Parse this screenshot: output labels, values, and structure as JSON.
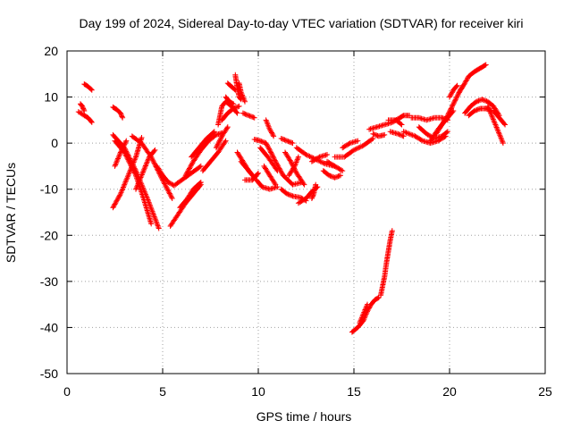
{
  "chart_data": {
    "type": "scatter",
    "title": "Day 199 of 2024, Sidereal Day-to-day VTEC variation (SDTVAR) for receiver kiri",
    "xlabel": "GPS time / hours",
    "ylabel": "SDTVAR / TECUs",
    "xlim": [
      0,
      25
    ],
    "ylim": [
      -50,
      20
    ],
    "xticks": [
      0,
      5,
      10,
      15,
      20,
      25
    ],
    "yticks": [
      -50,
      -40,
      -30,
      -20,
      -10,
      0,
      10,
      20
    ],
    "grid": true,
    "marker": "+",
    "series": [
      {
        "name": "SDTVAR",
        "color": "#ff0000",
        "tracks": [
          [
            [
              0.7,
              8.5
            ],
            [
              0.8,
              8
            ],
            [
              0.9,
              7
            ]
          ],
          [
            [
              0.6,
              6.8
            ],
            [
              0.9,
              6
            ],
            [
              1.1,
              5.5
            ],
            [
              1.3,
              4.5
            ]
          ],
          [
            [
              0.9,
              12.8
            ],
            [
              1.1,
              12.3
            ],
            [
              1.3,
              11.5
            ]
          ],
          [
            [
              2.4,
              7.8
            ],
            [
              2.6,
              7.3
            ],
            [
              2.8,
              6.5
            ],
            [
              2.9,
              5.5
            ]
          ],
          [
            [
              2.4,
              1.8
            ],
            [
              3.0,
              -1
            ],
            [
              3.6,
              -6
            ],
            [
              4.2,
              -12
            ],
            [
              4.8,
              -18.5
            ]
          ],
          [
            [
              2.5,
              0.5
            ],
            [
              3.0,
              -2
            ],
            [
              3.6,
              -7
            ],
            [
              4.0,
              -12
            ],
            [
              4.4,
              -17.5
            ]
          ],
          [
            [
              2.4,
              -14
            ],
            [
              2.8,
              -11
            ],
            [
              3.2,
              -7
            ],
            [
              3.6,
              -3
            ],
            [
              3.9,
              1.2
            ]
          ],
          [
            [
              2.5,
              -5
            ],
            [
              2.8,
              -2
            ],
            [
              3.1,
              0.5
            ]
          ],
          [
            [
              3.4,
              1.5
            ],
            [
              3.9,
              0
            ],
            [
              4.4,
              -3
            ],
            [
              5.0,
              -8
            ],
            [
              5.5,
              -12
            ]
          ],
          [
            [
              3.6,
              -10
            ],
            [
              4.0,
              -6
            ],
            [
              4.3,
              -3
            ],
            [
              4.6,
              -1.5
            ]
          ],
          [
            [
              4.7,
              -5
            ],
            [
              5.0,
              -7
            ],
            [
              5.3,
              -8.5
            ],
            [
              5.6,
              -9.2
            ],
            [
              6.0,
              -8
            ],
            [
              6.5,
              -6.5
            ],
            [
              7.0,
              -5
            ]
          ],
          [
            [
              5.4,
              -18
            ],
            [
              5.8,
              -15.5
            ],
            [
              6.2,
              -13
            ],
            [
              6.6,
              -11
            ],
            [
              7.0,
              -9
            ]
          ],
          [
            [
              5.9,
              -14
            ],
            [
              6.3,
              -12
            ],
            [
              6.6,
              -10
            ],
            [
              7.0,
              -8.5
            ]
          ],
          [
            [
              6.2,
              -7
            ],
            [
              6.6,
              -4
            ],
            [
              7.0,
              -1.5
            ],
            [
              7.4,
              0.5
            ],
            [
              7.8,
              1.8
            ],
            [
              8.1,
              2.2
            ]
          ],
          [
            [
              6.5,
              -3
            ],
            [
              6.9,
              -1
            ],
            [
              7.3,
              1
            ],
            [
              7.7,
              2.5
            ]
          ],
          [
            [
              7.1,
              -6
            ],
            [
              7.5,
              -4
            ],
            [
              7.9,
              -2
            ],
            [
              8.3,
              0.5
            ]
          ],
          [
            [
              7.8,
              -1
            ],
            [
              8.1,
              1.5
            ],
            [
              8.4,
              3.5
            ]
          ],
          [
            [
              7.9,
              4
            ],
            [
              8.0,
              6
            ],
            [
              8.1,
              8
            ],
            [
              8.3,
              9
            ],
            [
              8.6,
              8
            ],
            [
              8.9,
              6.5
            ]
          ],
          [
            [
              8.1,
              5
            ],
            [
              8.4,
              6.5
            ],
            [
              8.7,
              7.5
            ],
            [
              9.0,
              8
            ]
          ],
          [
            [
              8.3,
              10
            ],
            [
              8.5,
              9
            ],
            [
              8.7,
              8.5
            ]
          ],
          [
            [
              8.8,
              14.8
            ],
            [
              8.9,
              12
            ],
            [
              9.0,
              10
            ],
            [
              9.1,
              9.5
            ]
          ],
          [
            [
              9.0,
              13
            ],
            [
              9.1,
              11
            ],
            [
              9.3,
              9
            ]
          ],
          [
            [
              9.2,
              6.5
            ],
            [
              9.5,
              6
            ],
            [
              9.8,
              5.5
            ]
          ],
          [
            [
              8.4,
              13
            ],
            [
              8.8,
              11.5
            ]
          ],
          [
            [
              8.9,
              -2
            ],
            [
              9.2,
              -4
            ],
            [
              9.5,
              -6
            ],
            [
              9.8,
              -7.5
            ]
          ],
          [
            [
              9.1,
              -4
            ],
            [
              9.4,
              -5.5
            ],
            [
              9.7,
              -7
            ]
          ],
          [
            [
              9.3,
              -8
            ],
            [
              9.7,
              -8
            ],
            [
              10.0,
              -6.5
            ]
          ],
          [
            [
              9.8,
              0.8
            ],
            [
              10.1,
              0.5
            ],
            [
              10.4,
              0
            ],
            [
              10.6,
              -1.5
            ],
            [
              10.9,
              -4
            ],
            [
              11.3,
              -7
            ],
            [
              11.8,
              -9
            ],
            [
              12.3,
              -8.5
            ]
          ],
          [
            [
              10.1,
              -1
            ],
            [
              10.5,
              -3
            ],
            [
              11.0,
              -6
            ]
          ],
          [
            [
              10.4,
              5
            ],
            [
              10.6,
              3
            ],
            [
              10.8,
              1.5
            ]
          ],
          [
            [
              10.3,
              -5
            ],
            [
              10.6,
              -7
            ],
            [
              10.9,
              -9
            ]
          ],
          [
            [
              9.9,
              -8
            ],
            [
              10.2,
              -9.5
            ],
            [
              10.6,
              -10
            ],
            [
              11.0,
              -9.5
            ]
          ],
          [
            [
              11.2,
              -10
            ],
            [
              11.5,
              -11
            ],
            [
              11.8,
              -11.5
            ],
            [
              12.2,
              -11.8
            ],
            [
              12.5,
              -12.5
            ]
          ],
          [
            [
              11.2,
              1
            ],
            [
              11.5,
              0.5
            ],
            [
              11.8,
              0
            ]
          ],
          [
            [
              11.4,
              -2
            ],
            [
              11.7,
              -4
            ],
            [
              12.0,
              -6.5
            ],
            [
              12.4,
              -9
            ]
          ],
          [
            [
              11.6,
              -7
            ],
            [
              11.9,
              -5
            ],
            [
              12.1,
              -3
            ]
          ],
          [
            [
              12.1,
              -13
            ],
            [
              12.5,
              -12
            ],
            [
              12.8,
              -10.5
            ],
            [
              13.1,
              -9.5
            ]
          ],
          [
            [
              12.8,
              -12
            ],
            [
              12.9,
              -11
            ],
            [
              13.0,
              -9
            ]
          ],
          [
            [
              12.0,
              -1
            ],
            [
              12.5,
              -2.5
            ],
            [
              13.0,
              -3.5
            ],
            [
              13.5,
              -4.5
            ],
            [
              14.0,
              -5
            ]
          ],
          [
            [
              12.8,
              -4
            ],
            [
              13.2,
              -3
            ],
            [
              13.6,
              -2.5
            ]
          ],
          [
            [
              13.4,
              -6
            ],
            [
              13.7,
              -7
            ],
            [
              14.0,
              -7.5
            ],
            [
              14.3,
              -7
            ]
          ],
          [
            [
              13.6,
              -4
            ],
            [
              14.0,
              -5
            ],
            [
              14.4,
              -6
            ]
          ],
          [
            [
              14.0,
              -3
            ],
            [
              14.5,
              -3
            ],
            [
              15.0,
              -1.5
            ],
            [
              15.5,
              -0.5
            ],
            [
              16.0,
              1
            ]
          ],
          [
            [
              14.4,
              -1
            ],
            [
              14.8,
              0
            ],
            [
              15.2,
              0.5
            ]
          ],
          [
            [
              14.9,
              -41
            ],
            [
              15.2,
              -40
            ],
            [
              15.5,
              -38.5
            ],
            [
              15.7,
              -36.5
            ],
            [
              15.9,
              -35
            ],
            [
              16.1,
              -34
            ],
            [
              16.3,
              -33.5
            ]
          ],
          [
            [
              15.3,
              -39
            ],
            [
              15.5,
              -37
            ],
            [
              15.7,
              -35
            ]
          ],
          [
            [
              16.4,
              -33
            ],
            [
              16.5,
              -31
            ],
            [
              16.6,
              -29
            ],
            [
              16.7,
              -26
            ],
            [
              16.8,
              -23.5
            ],
            [
              16.9,
              -21
            ],
            [
              17.0,
              -19
            ]
          ],
          [
            [
              15.8,
              3
            ],
            [
              16.2,
              3.5
            ],
            [
              16.6,
              4
            ],
            [
              17.0,
              4.5
            ],
            [
              17.4,
              5.5
            ],
            [
              17.6,
              6
            ],
            [
              17.9,
              6
            ]
          ],
          [
            [
              16.0,
              2
            ],
            [
              16.3,
              1.5
            ],
            [
              16.6,
              1.8
            ]
          ],
          [
            [
              16.8,
              5
            ],
            [
              17.2,
              5
            ],
            [
              17.5,
              4
            ]
          ],
          [
            [
              16.9,
              2.5
            ],
            [
              17.3,
              2
            ],
            [
              17.6,
              1.5
            ]
          ],
          [
            [
              18.0,
              5.5
            ],
            [
              18.4,
              5.5
            ],
            [
              18.8,
              5
            ],
            [
              19.2,
              5.5
            ],
            [
              19.6,
              5.5
            ],
            [
              19.9,
              5
            ]
          ],
          [
            [
              17.6,
              2.5
            ],
            [
              18.2,
              1.5
            ],
            [
              18.6,
              0.5
            ],
            [
              19.0,
              0
            ],
            [
              19.4,
              0.5
            ],
            [
              19.8,
              1.5
            ]
          ],
          [
            [
              18.4,
              3.5
            ],
            [
              18.8,
              2
            ],
            [
              19.2,
              1
            ],
            [
              19.6,
              1.5
            ],
            [
              19.9,
              2.5
            ]
          ],
          [
            [
              19.3,
              2
            ],
            [
              19.6,
              4
            ],
            [
              19.9,
              6
            ],
            [
              20.2,
              8.5
            ],
            [
              20.5,
              11
            ],
            [
              20.7,
              12.5
            ]
          ],
          [
            [
              19.0,
              0.5
            ],
            [
              19.4,
              3
            ],
            [
              19.8,
              5
            ],
            [
              20.2,
              7
            ]
          ],
          [
            [
              20.5,
              11
            ],
            [
              20.8,
              13
            ],
            [
              21.0,
              14.5
            ],
            [
              21.3,
              15.5
            ],
            [
              21.5,
              16
            ],
            [
              21.7,
              16.5
            ],
            [
              21.9,
              17
            ]
          ],
          [
            [
              20.0,
              10
            ],
            [
              20.2,
              11.5
            ],
            [
              20.4,
              12.5
            ]
          ],
          [
            [
              20.8,
              6.5
            ],
            [
              21.1,
              8
            ],
            [
              21.4,
              9
            ],
            [
              21.7,
              9.5
            ],
            [
              22.0,
              9
            ],
            [
              22.3,
              8
            ],
            [
              22.6,
              6
            ]
          ],
          [
            [
              21.0,
              6
            ],
            [
              21.3,
              7
            ],
            [
              21.6,
              7.5
            ],
            [
              21.9,
              7.5
            ],
            [
              22.2,
              7
            ]
          ],
          [
            [
              22.0,
              8
            ],
            [
              22.2,
              6
            ],
            [
              22.4,
              4
            ],
            [
              22.6,
              2
            ],
            [
              22.8,
              0
            ]
          ],
          [
            [
              22.3,
              7
            ],
            [
              22.6,
              5.5
            ],
            [
              22.9,
              4
            ]
          ]
        ]
      }
    ]
  }
}
